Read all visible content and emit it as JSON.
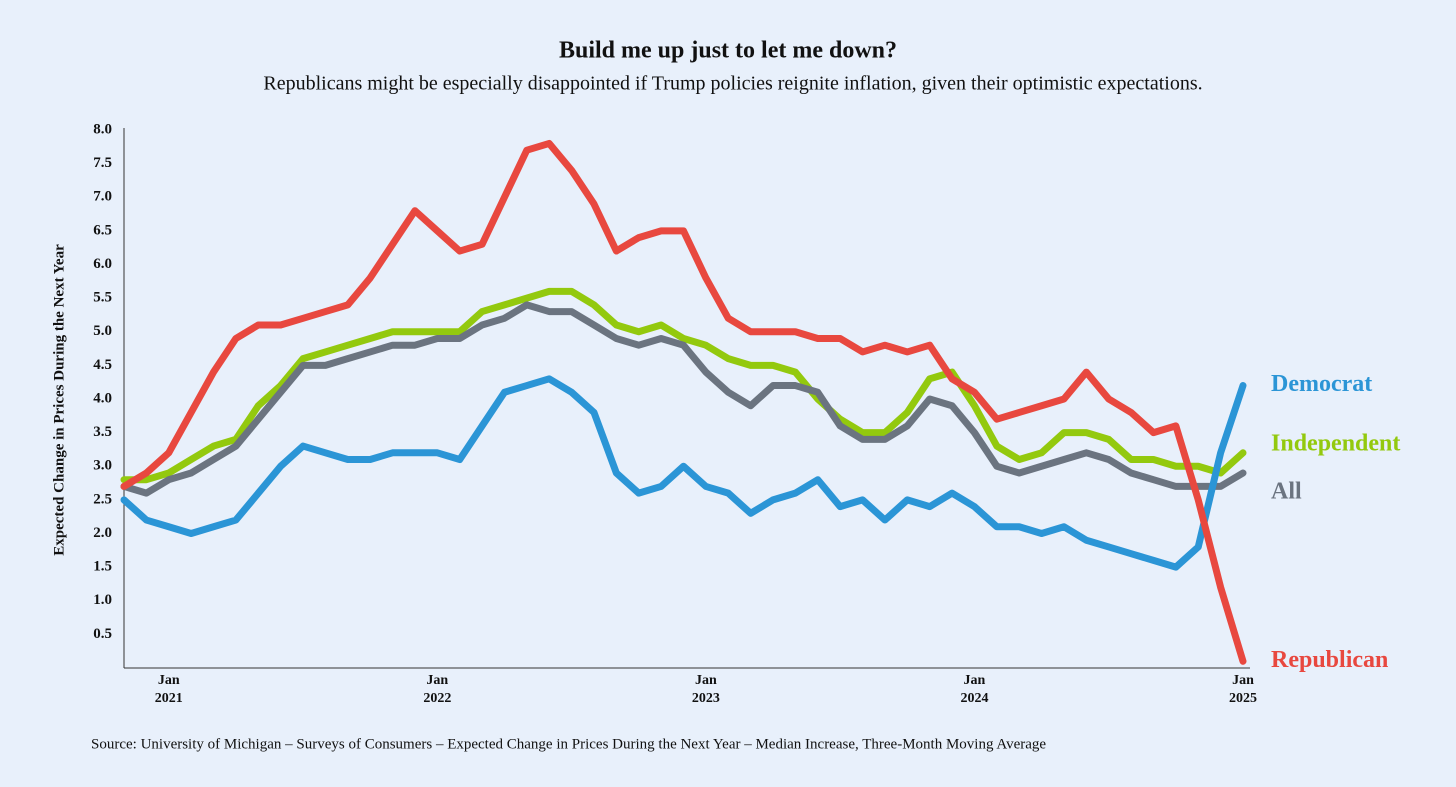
{
  "chart_data": {
    "type": "line",
    "title": "Build me up just to let me down?",
    "subtitle": "Republicans might be especially disappointed if Trump policies reignite inflation, given their optimistic expectations.",
    "y_label": "Expected Change in Prices During the Next Year",
    "source": "Source: University of Michigan – Surveys of Consumers – Expected Change in Prices During the Next Year – Median Increase, Three-Month Moving Average",
    "categories": [
      null,
      null,
      "Jan 2021",
      null,
      null,
      null,
      null,
      null,
      null,
      null,
      null,
      null,
      null,
      null,
      "Jan 2022",
      null,
      null,
      null,
      null,
      null,
      null,
      null,
      null,
      null,
      null,
      null,
      "Jan 2023",
      null,
      null,
      null,
      null,
      null,
      null,
      null,
      null,
      null,
      null,
      null,
      "Jan 2024",
      null,
      null,
      null,
      null,
      null,
      null,
      null,
      null,
      null,
      null,
      null,
      "Jan 2025"
    ],
    "series": [
      {
        "name": "Democrat",
        "color": "#2b95d6",
        "values": [
          2.5,
          2.2,
          2.1,
          2.0,
          2.1,
          2.2,
          2.6,
          3.0,
          3.3,
          3.2,
          3.1,
          3.1,
          3.2,
          3.2,
          3.2,
          3.1,
          3.6,
          4.1,
          4.2,
          4.3,
          4.1,
          3.8,
          2.9,
          2.6,
          2.7,
          3.0,
          2.7,
          2.6,
          2.3,
          2.5,
          2.6,
          2.8,
          2.4,
          2.5,
          2.2,
          2.5,
          2.4,
          2.6,
          2.4,
          2.1,
          2.1,
          2.0,
          2.1,
          1.9,
          1.8,
          1.7,
          1.6,
          1.5,
          1.8,
          3.2,
          4.2
        ]
      },
      {
        "name": "Independent",
        "color": "#93c90e",
        "values": [
          2.8,
          2.8,
          2.9,
          3.1,
          3.3,
          3.4,
          3.9,
          4.2,
          4.6,
          4.7,
          4.8,
          4.9,
          5.0,
          5.0,
          5.0,
          5.0,
          5.3,
          5.4,
          5.5,
          5.6,
          5.6,
          5.4,
          5.1,
          5.0,
          5.1,
          4.9,
          4.8,
          4.6,
          4.5,
          4.5,
          4.4,
          4.0,
          3.7,
          3.5,
          3.5,
          3.8,
          4.3,
          4.4,
          3.9,
          3.3,
          3.1,
          3.2,
          3.5,
          3.5,
          3.4,
          3.1,
          3.1,
          3.0,
          3.0,
          2.9,
          3.2
        ]
      },
      {
        "name": "All",
        "color": "#6b7480",
        "values": [
          2.7,
          2.6,
          2.8,
          2.9,
          3.1,
          3.3,
          3.7,
          4.1,
          4.5,
          4.5,
          4.6,
          4.7,
          4.8,
          4.8,
          4.9,
          4.9,
          5.1,
          5.2,
          5.4,
          5.3,
          5.3,
          5.1,
          4.9,
          4.8,
          4.9,
          4.8,
          4.4,
          4.1,
          3.9,
          4.2,
          4.2,
          4.1,
          3.6,
          3.4,
          3.4,
          3.6,
          4.0,
          3.9,
          3.5,
          3.0,
          2.9,
          3.0,
          3.1,
          3.2,
          3.1,
          2.9,
          2.8,
          2.7,
          2.7,
          2.7,
          2.9
        ]
      },
      {
        "name": "Republican",
        "color": "#e8483f",
        "values": [
          2.7,
          2.9,
          3.2,
          3.8,
          4.4,
          4.9,
          5.1,
          5.1,
          5.2,
          5.3,
          5.4,
          5.8,
          6.3,
          6.8,
          6.5,
          6.2,
          6.3,
          7.0,
          7.7,
          7.8,
          7.4,
          6.9,
          6.2,
          6.4,
          6.5,
          6.5,
          5.8,
          5.2,
          5.0,
          5.0,
          5.0,
          4.9,
          4.9,
          4.7,
          4.8,
          4.7,
          4.8,
          4.3,
          4.1,
          3.7,
          3.8,
          3.9,
          4.0,
          4.4,
          4.0,
          3.8,
          3.5,
          3.6,
          2.5,
          1.2,
          0.1
        ]
      }
    ],
    "ylim": [
      0,
      8
    ],
    "yticks": [
      0.5,
      {
        "value": 1,
        "label": "1.0"
      },
      1.5,
      {
        "value": 2,
        "label": "2.0"
      },
      2.5,
      {
        "value": 3,
        "label": "3.0"
      },
      3.5,
      {
        "value": 4,
        "label": "4.0"
      },
      4.5,
      {
        "value": 5,
        "label": "5.0"
      },
      5.5,
      {
        "value": 6,
        "label": "6.0"
      },
      6.5,
      {
        "value": 7,
        "label": "7.0"
      },
      7.5,
      {
        "value": 8,
        "label": "8.0"
      }
    ],
    "grid": false
  }
}
